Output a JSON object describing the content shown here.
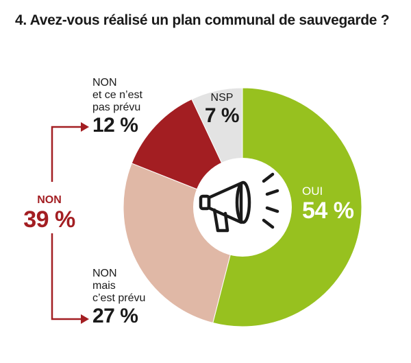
{
  "title": "4. Avez-vous réalisé un plan communal de sauvegarde ?",
  "chart_data": {
    "type": "pie",
    "title": "4. Avez-vous réalisé un plan communal de sauvegarde ?",
    "slices": [
      {
        "label": "OUI",
        "value": 54,
        "value_label": "54 %",
        "color": "#97c11f"
      },
      {
        "label": "NON mais c'est prévu",
        "value": 27,
        "value_label": "27 %",
        "color": "#e0b8a6"
      },
      {
        "label": "NON et ce n'est pas prévu",
        "value": 12,
        "value_label": "12 %",
        "color": "#a31e22"
      },
      {
        "label": "NSP",
        "value": 7,
        "value_label": "7 %",
        "color": "#e3e3e3"
      }
    ],
    "group": {
      "label": "NON",
      "value": 39,
      "value_label": "39 %",
      "members": [
        "NON et ce n'est pas prévu",
        "NON mais c'est prévu"
      ],
      "color": "#a31e22"
    },
    "center_icon": "megaphone-icon",
    "legend": "none"
  },
  "labels": {
    "oui": {
      "name": "OUI",
      "pct": "54 %"
    },
    "nsp": {
      "name": "NSP",
      "pct": "7 %"
    },
    "non_pas_prevu": {
      "line1": "NON",
      "line2": "et ce n’est",
      "line3": "pas prévu",
      "pct": "12 %"
    },
    "non_prevu": {
      "line1": "NON",
      "line2": "mais",
      "line3": "c’est prévu",
      "pct": "27 %"
    },
    "non_total": {
      "name": "NON",
      "pct": "39 %"
    }
  }
}
